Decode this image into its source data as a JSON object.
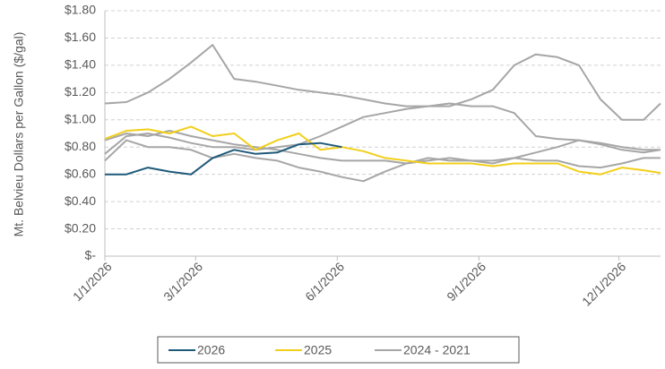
{
  "chart_data": {
    "type": "line",
    "y_label": "Mt. Belvieu Dollars per Gallon ($/gal)",
    "x": [
      "1/1/2026",
      "1/15/2026",
      "1/29/2026",
      "2/12/2026",
      "2/26/2026",
      "3/12/2026",
      "3/26/2026",
      "4/9/2026",
      "4/23/2026",
      "5/7/2026",
      "5/21/2026",
      "6/4/2026",
      "6/18/2026",
      "7/2/2026",
      "7/16/2026",
      "7/30/2026",
      "8/13/2026",
      "8/27/2026",
      "9/10/2026",
      "9/24/2026",
      "10/8/2026",
      "10/22/2026",
      "11/5/2026",
      "11/19/2026",
      "12/3/2026",
      "12/17/2026",
      "12/28/2026"
    ],
    "xlim": [
      "1/1/2026",
      "12/28/2026"
    ],
    "xticks": [
      "1/1/2026",
      "3/1/2026",
      "6/1/2026",
      "9/1/2026",
      "12/1/2026"
    ],
    "ylim": [
      0,
      1.8
    ],
    "yticks": [
      {
        "value": 0,
        "label": "$-"
      },
      {
        "value": 0.2,
        "label": "$0.20"
      },
      {
        "value": 0.4,
        "label": "$0.40"
      },
      {
        "value": 0.6,
        "label": "$0.60"
      },
      {
        "value": 0.8,
        "label": "$0.80"
      },
      {
        "value": 1.0,
        "label": "$1.00"
      },
      {
        "value": 1.2,
        "label": "$1.20"
      },
      {
        "value": 1.4,
        "label": "$1.40"
      },
      {
        "value": 1.6,
        "label": "$1.60"
      },
      {
        "value": 1.8,
        "label": "$1.80"
      }
    ],
    "grid": true,
    "legend": "bottom",
    "series": [
      {
        "name": "2026",
        "color": "#1f5a7a",
        "values": [
          0.6,
          0.6,
          0.65,
          0.62,
          0.6,
          0.72,
          0.78,
          0.75,
          0.76,
          0.82,
          0.83,
          0.8,
          null,
          null,
          null,
          null,
          null,
          null,
          null,
          null,
          null,
          null,
          null,
          null,
          null,
          null,
          null
        ]
      },
      {
        "name": "2025",
        "color": "#f2cf1a",
        "values": [
          0.86,
          0.92,
          0.93,
          0.9,
          0.95,
          0.88,
          0.9,
          0.78,
          0.85,
          0.9,
          0.78,
          0.8,
          0.77,
          0.72,
          0.7,
          0.68,
          0.68,
          0.68,
          0.66,
          0.68,
          0.68,
          0.68,
          0.62,
          0.6,
          0.65,
          0.63,
          0.61
        ]
      },
      {
        "name": "2024 - 2021",
        "color": "#a6a6a6",
        "values": [
          [
            1.12,
            1.13,
            1.2,
            1.3,
            1.42,
            1.55,
            1.3,
            1.28,
            1.25,
            1.22,
            1.2,
            1.18,
            1.15,
            1.12,
            1.1,
            1.1,
            1.12,
            1.1,
            1.1,
            1.05,
            0.88,
            0.86,
            0.85,
            0.83,
            0.8,
            0.78,
            0.78
          ],
          [
            0.75,
            0.88,
            0.9,
            0.87,
            0.83,
            0.8,
            0.8,
            0.78,
            0.8,
            0.82,
            0.88,
            0.95,
            1.02,
            1.05,
            1.08,
            1.1,
            1.1,
            1.15,
            1.22,
            1.4,
            1.48,
            1.46,
            1.4,
            1.15,
            1.0,
            1.0,
            1.12
          ],
          [
            0.85,
            0.9,
            0.88,
            0.92,
            0.88,
            0.85,
            0.82,
            0.8,
            0.78,
            0.75,
            0.72,
            0.7,
            0.7,
            0.7,
            0.68,
            0.7,
            0.72,
            0.7,
            0.7,
            0.72,
            0.7,
            0.7,
            0.66,
            0.65,
            0.68,
            0.72,
            0.72
          ],
          [
            0.7,
            0.85,
            0.8,
            0.8,
            0.78,
            0.72,
            0.75,
            0.72,
            0.7,
            0.65,
            0.62,
            0.58,
            0.55,
            0.62,
            0.68,
            0.72,
            0.7,
            0.7,
            0.68,
            0.72,
            0.76,
            0.8,
            0.85,
            0.82,
            0.78,
            0.76,
            0.78
          ]
        ]
      }
    ]
  }
}
